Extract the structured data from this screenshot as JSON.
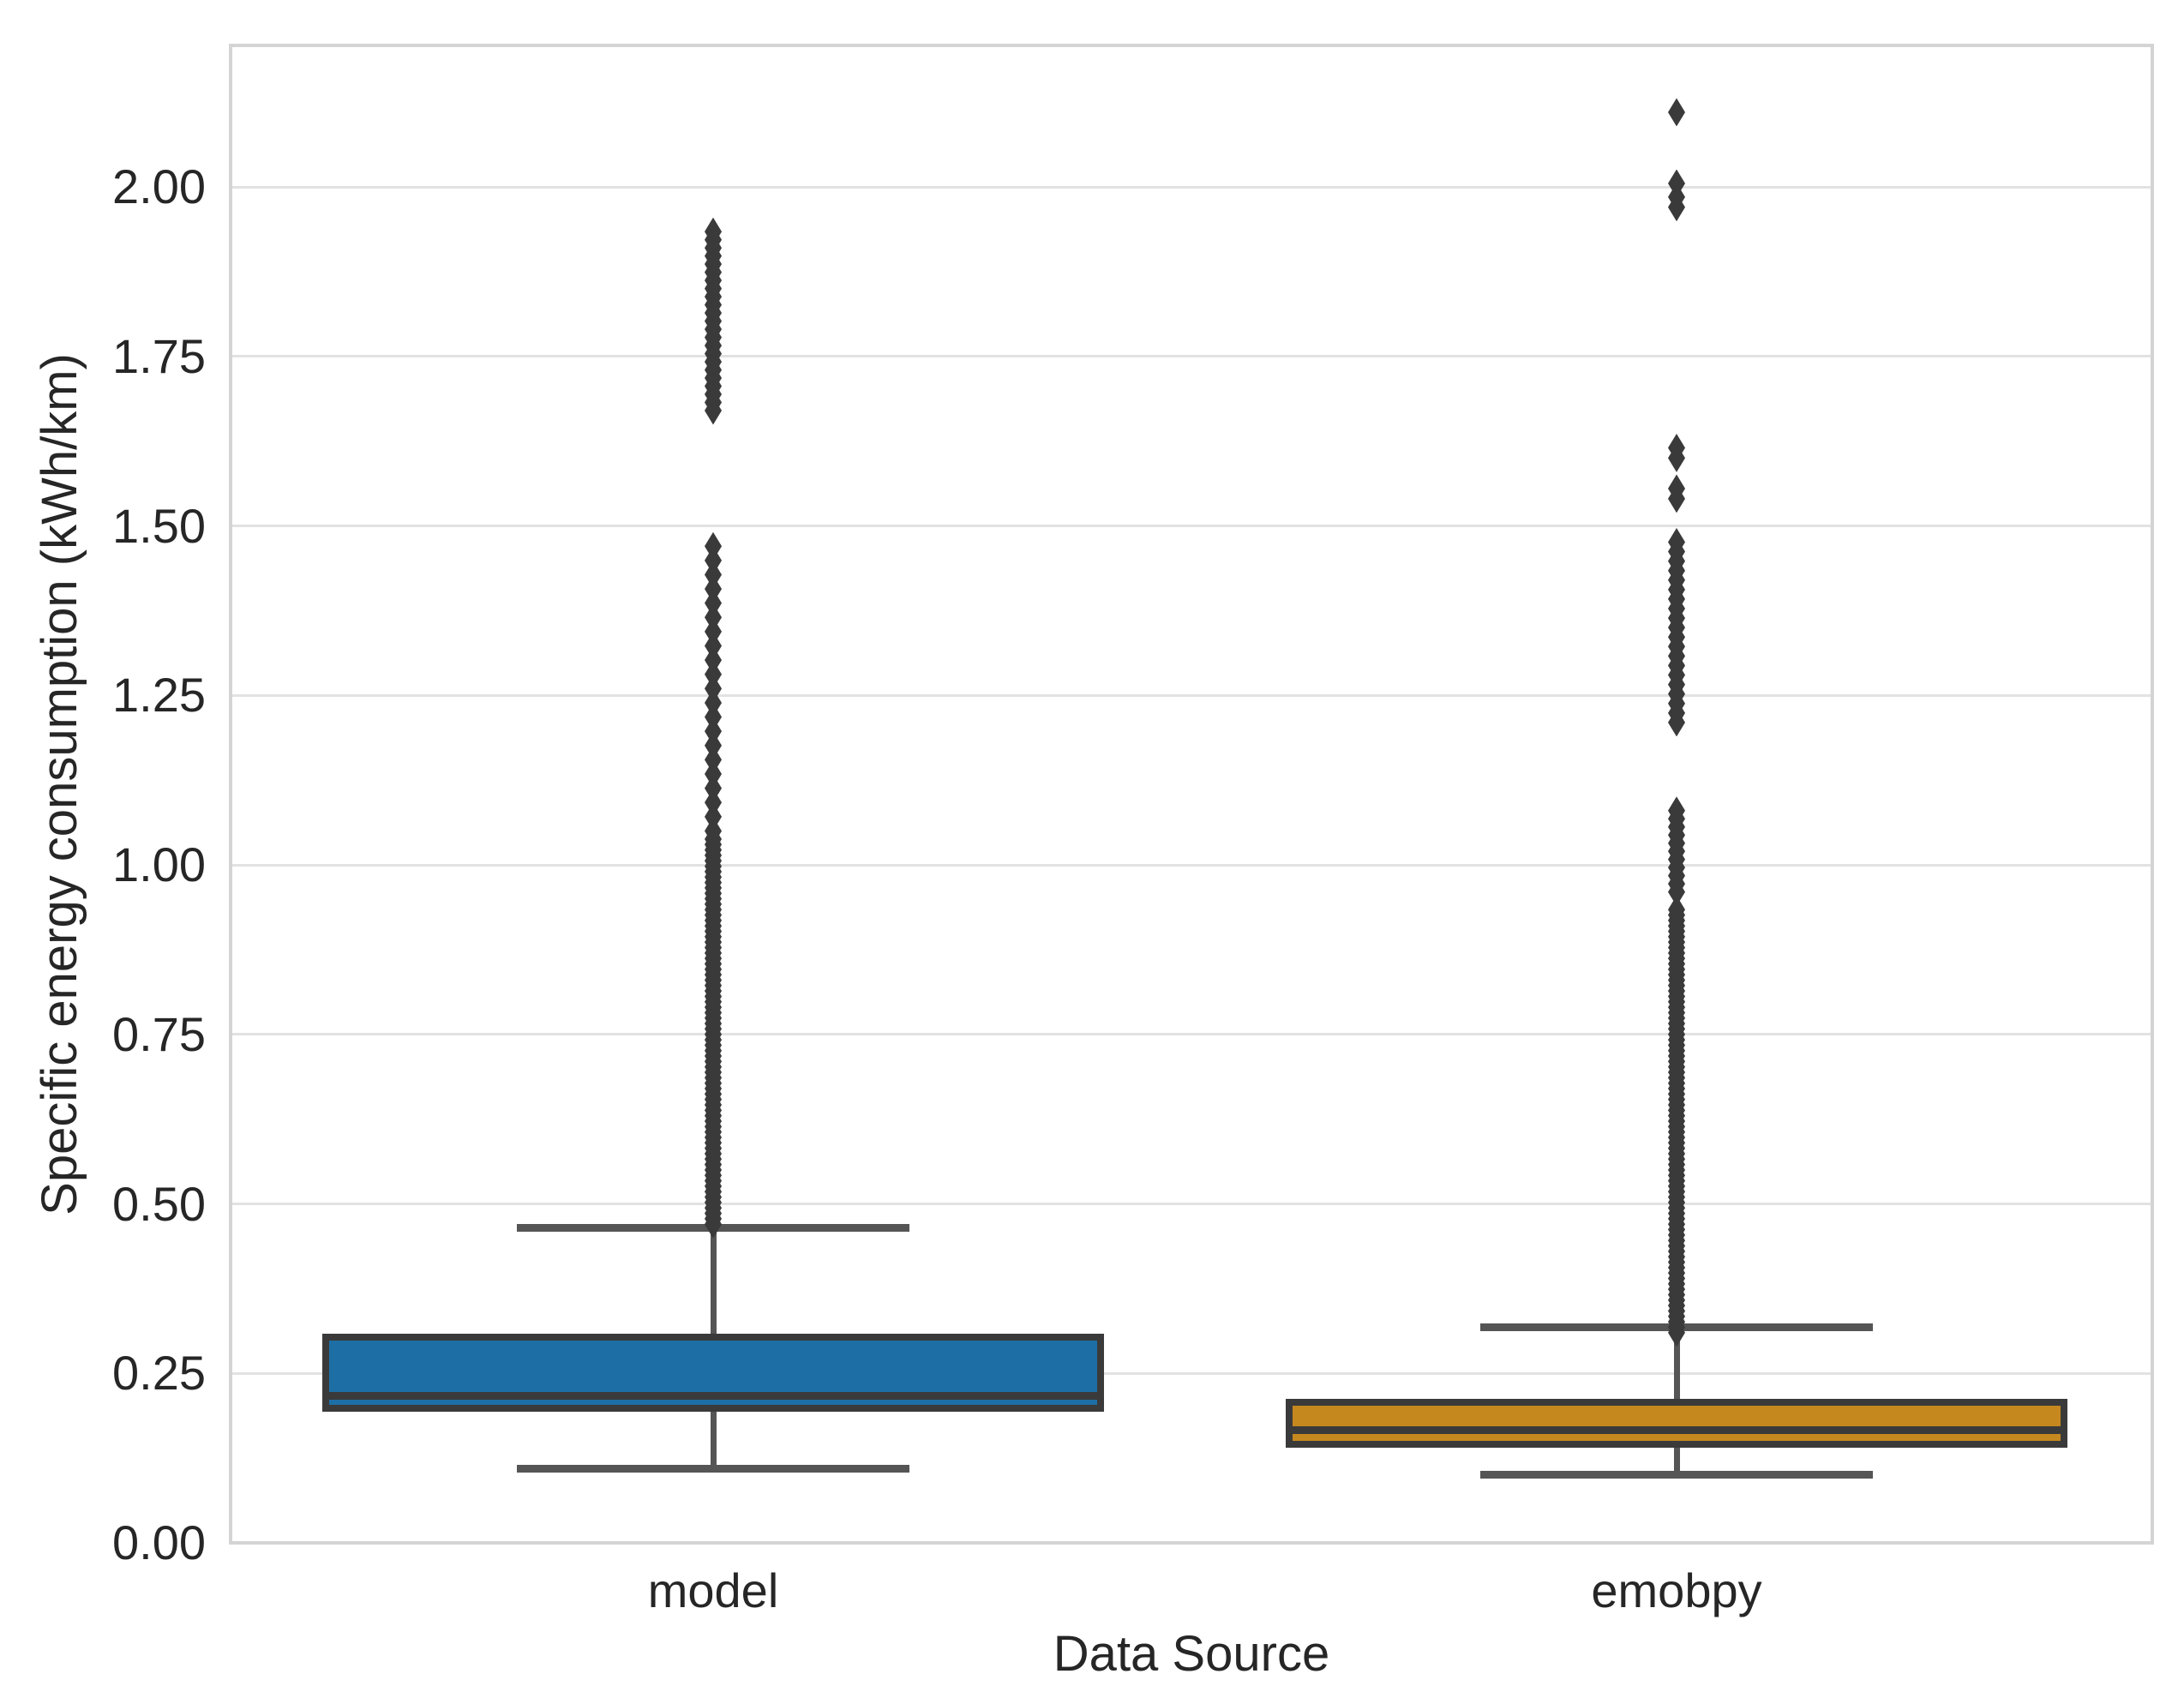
{
  "figure": {
    "background_color": "#ffffff",
    "grid_color": "#e2e2e2",
    "spine_color": "#d4d4d4",
    "text_color": "#262626",
    "whisker_color": "#555555",
    "flier_color": "#3a3a3a"
  },
  "chart_data": {
    "type": "box",
    "title": "",
    "xlabel": "Data Source",
    "ylabel": "Specific energy consumption (kWh/km)",
    "categories": [
      "model",
      "emobpy"
    ],
    "ylim": [
      0.0,
      2.21
    ],
    "yticks": [
      0.0,
      0.25,
      0.5,
      0.75,
      1.0,
      1.25,
      1.5,
      1.75,
      2.0
    ],
    "ytick_labels": [
      "0.00",
      "0.25",
      "0.50",
      "0.75",
      "1.00",
      "1.25",
      "1.50",
      "1.75",
      "2.00"
    ],
    "grid": "horizontal-only",
    "legend": "none",
    "boxes": [
      {
        "category": "model",
        "fill_color": "#1d6ea5",
        "edge_color": "#3a3a3a",
        "q1": 0.193,
        "median": 0.217,
        "q3": 0.309,
        "whisker_low": 0.109,
        "whisker_high": 0.464,
        "outlier_dense_ranges": [
          {
            "from": 0.47,
            "to": 1.04,
            "step": 0.008
          },
          {
            "from": 1.05,
            "to": 1.46,
            "step": 0.021
          },
          {
            "from": 1.67,
            "to": 1.93,
            "step": 0.012
          }
        ],
        "outlier_points": []
      },
      {
        "category": "emobpy",
        "fill_color": "#c5881e",
        "edge_color": "#3a3a3a",
        "q1": 0.14,
        "median": 0.166,
        "q3": 0.213,
        "whisker_low": 0.101,
        "whisker_high": 0.318,
        "outlier_dense_ranges": [
          {
            "from": 0.31,
            "to": 0.93,
            "step": 0.008
          },
          {
            "from": 0.96,
            "to": 1.08,
            "step": 0.012
          },
          {
            "from": 1.21,
            "to": 1.47,
            "step": 0.014
          }
        ],
        "outlier_points": [
          1.54,
          1.555,
          1.6,
          1.615,
          1.97,
          1.985,
          2.005,
          2.11
        ]
      }
    ]
  }
}
